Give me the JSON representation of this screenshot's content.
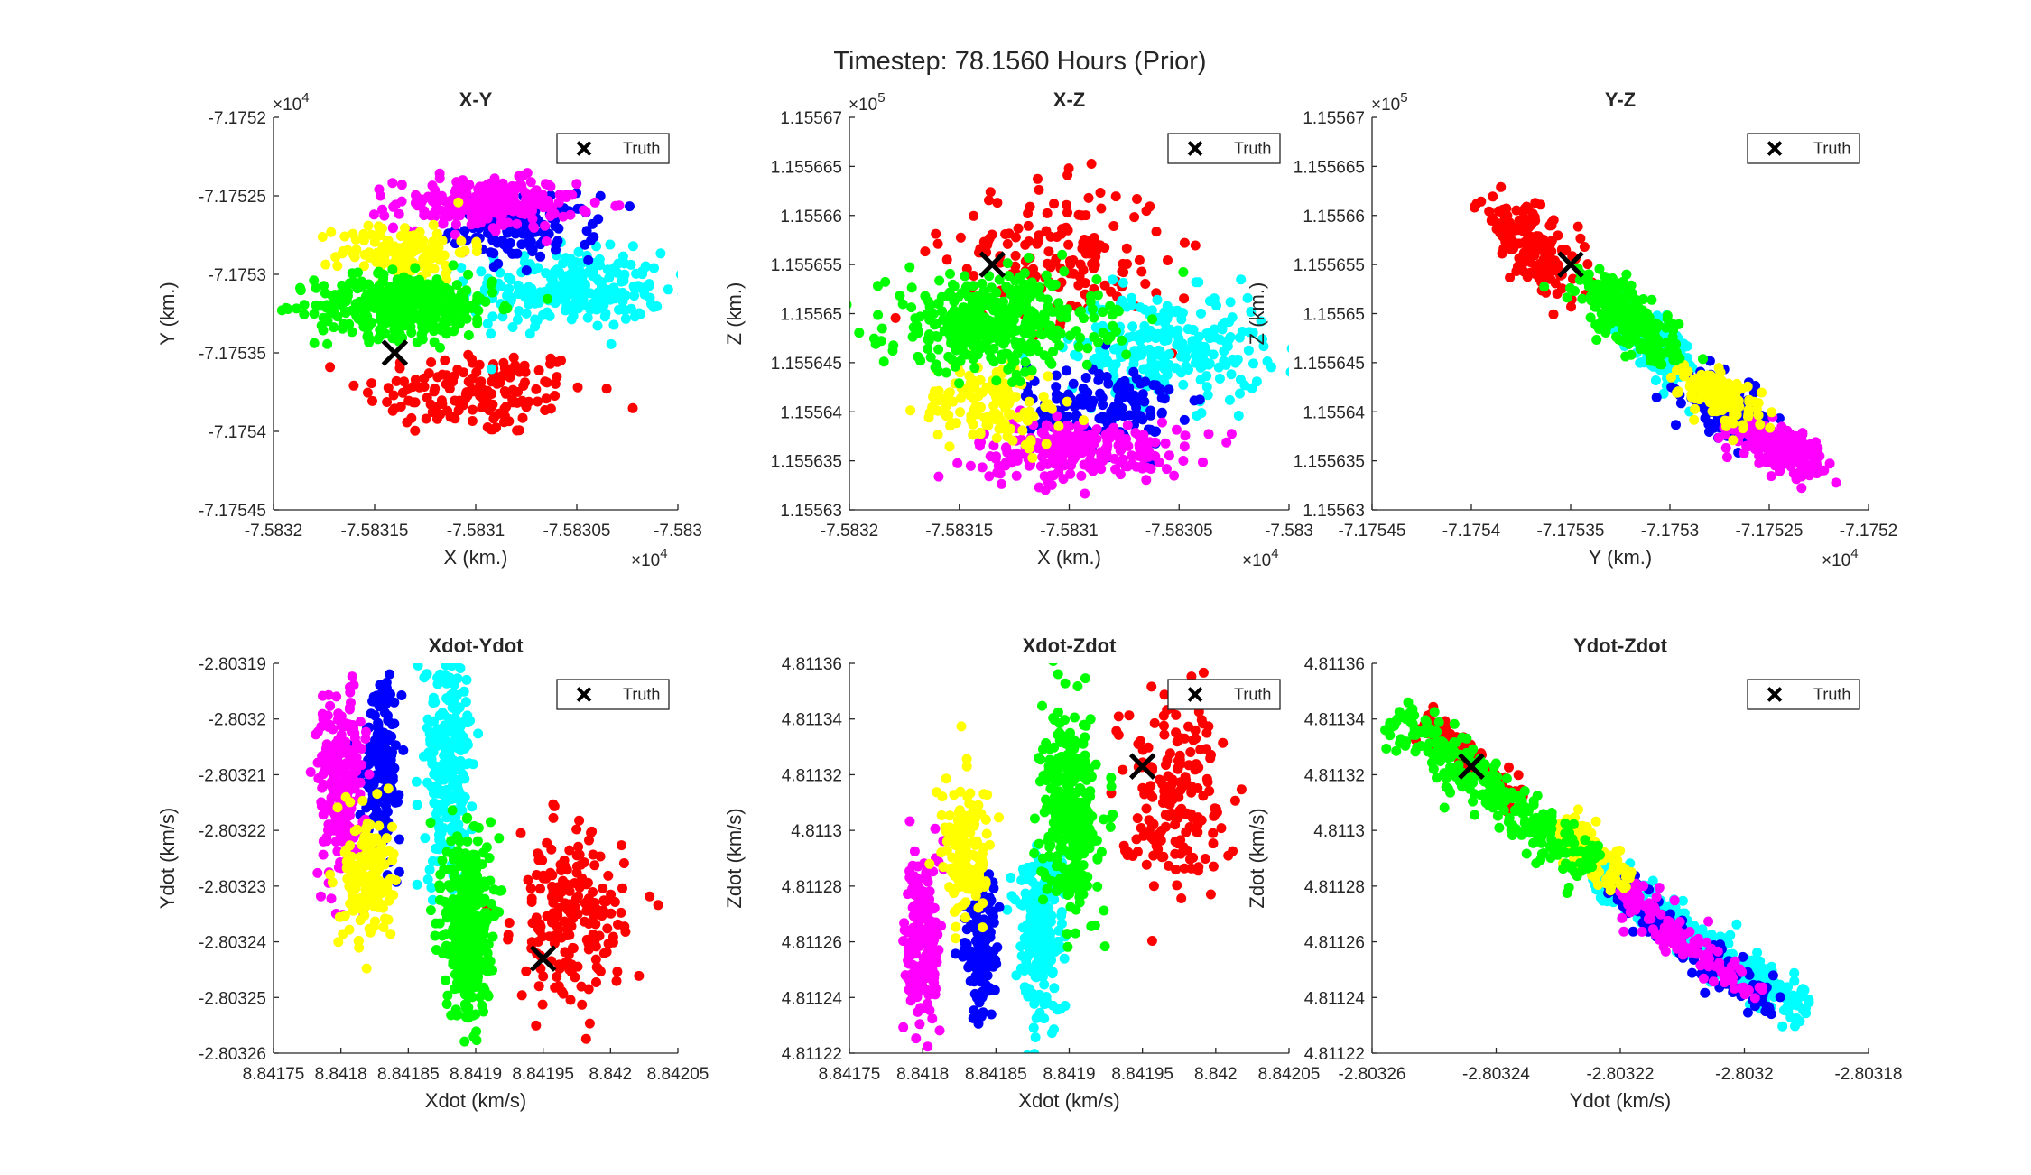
{
  "figure": {
    "title": "Timestep: 78.1560 Hours (Prior)"
  },
  "colors": {
    "red": "#ff0000",
    "green": "#00ff00",
    "blue": "#0000ff",
    "cyan": "#00ffff",
    "magenta": "#ff00ff",
    "yellow": "#ffff00",
    "truth": "#000000",
    "axis": "#262626"
  },
  "chart_data": [
    {
      "id": "xy",
      "type": "scatter",
      "title": "X-Y",
      "xlabel": "X (km.)",
      "ylabel": "Y (km.)",
      "xlim": [
        -75832,
        -75830
      ],
      "ylim": [
        -71754.5,
        -71752
      ],
      "xticks": [
        -75832,
        -75831.5,
        -75831,
        -75830.5,
        -75830
      ],
      "yticks": [
        -71754.5,
        -71754,
        -71753.5,
        -71753,
        -71752.5,
        -71752
      ],
      "xtick_labels": [
        "-7.5832",
        "-7.58315",
        "-7.5831",
        "-7.58305",
        "-7.583"
      ],
      "ytick_labels": [
        "-7.17545",
        "-7.1754",
        "-7.17535",
        "-7.1753",
        "-7.17525",
        "-7.1752"
      ],
      "x_exponent": "4",
      "y_exponent": "4",
      "legend": "Truth",
      "legend_position": "top-right",
      "truth": [
        -75831.4,
        -71753.5
      ],
      "clusters": [
        {
          "color": "red",
          "center": [
            -75831.0,
            -71753.75
          ],
          "spread": [
            0.28,
            0.14
          ],
          "count": 160
        },
        {
          "color": "cyan",
          "center": [
            -75830.55,
            -71753.1
          ],
          "spread": [
            0.24,
            0.12
          ],
          "count": 260
        },
        {
          "color": "blue",
          "center": [
            -75830.75,
            -71752.7
          ],
          "spread": [
            0.17,
            0.1
          ],
          "count": 140
        },
        {
          "color": "magenta",
          "center": [
            -75830.95,
            -71752.55
          ],
          "spread": [
            0.22,
            0.08
          ],
          "count": 240
        },
        {
          "color": "yellow",
          "center": [
            -75831.35,
            -71752.85
          ],
          "spread": [
            0.16,
            0.09
          ],
          "count": 130
        },
        {
          "color": "green",
          "center": [
            -75831.35,
            -71753.2
          ],
          "spread": [
            0.22,
            0.1
          ],
          "count": 420
        }
      ]
    },
    {
      "id": "xz",
      "type": "scatter",
      "title": "X-Z",
      "xlabel": "X (km.)",
      "ylabel": "Z (km.)",
      "xlim": [
        -75832,
        -75830
      ],
      "ylim": [
        115563,
        115567
      ],
      "xticks": [
        -75832,
        -75831.5,
        -75831,
        -75830.5,
        -75830
      ],
      "yticks": [
        115563,
        115563.5,
        115564,
        115564.5,
        115565,
        115565.5,
        115566,
        115566.5,
        115567
      ],
      "xtick_labels": [
        "-7.5832",
        "-7.58315",
        "-7.5831",
        "-7.58305",
        "-7.583"
      ],
      "ytick_labels": [
        "1.15563",
        "1.155635",
        "1.15564",
        "1.155645",
        "1.15565",
        "1.155655",
        "1.15566",
        "1.155665",
        "1.15567"
      ],
      "x_exponent": "4",
      "y_exponent": "5",
      "legend": "Truth",
      "legend_position": "top-right",
      "truth": [
        -75831.35,
        115565.5
      ],
      "clusters": [
        {
          "color": "red",
          "center": [
            -75831.05,
            115565.6
          ],
          "spread": [
            0.25,
            0.35
          ],
          "count": 170
        },
        {
          "color": "cyan",
          "center": [
            -75830.55,
            115564.65
          ],
          "spread": [
            0.22,
            0.28
          ],
          "count": 250
        },
        {
          "color": "blue",
          "center": [
            -75830.85,
            115564.05
          ],
          "spread": [
            0.17,
            0.22
          ],
          "count": 150
        },
        {
          "color": "yellow",
          "center": [
            -75831.35,
            115564.1
          ],
          "spread": [
            0.16,
            0.22
          ],
          "count": 140
        },
        {
          "color": "magenta",
          "center": [
            -75830.95,
            115563.6
          ],
          "spread": [
            0.24,
            0.15
          ],
          "count": 230
        },
        {
          "color": "green",
          "center": [
            -75831.35,
            115564.9
          ],
          "spread": [
            0.24,
            0.24
          ],
          "count": 420
        }
      ]
    },
    {
      "id": "yz",
      "type": "scatter",
      "title": "Y-Z",
      "xlabel": "Y (km.)",
      "ylabel": "Z (km.)",
      "xlim": [
        -71754.5,
        -71752
      ],
      "ylim": [
        115563,
        115567
      ],
      "xticks": [
        -71754.5,
        -71754,
        -71753.5,
        -71753,
        -71752.5,
        -71752
      ],
      "yticks": [
        115563,
        115563.5,
        115564,
        115564.5,
        115565,
        115565.5,
        115566,
        115566.5,
        115567
      ],
      "xtick_labels": [
        "-7.17545",
        "-7.1754",
        "-7.17535",
        "-7.1753",
        "-7.17525",
        "-7.1752"
      ],
      "ytick_labels": [
        "1.15563",
        "1.155635",
        "1.15564",
        "1.155645",
        "1.15565",
        "1.155655",
        "1.15566",
        "1.155665",
        "1.15567"
      ],
      "x_exponent": "4",
      "y_exponent": "5",
      "legend": "Truth",
      "legend_position": "top-right",
      "truth": [
        -71753.5,
        115565.5
      ],
      "clusters": [
        {
          "color": "red",
          "center": [
            -71753.7,
            115565.7
          ],
          "spread": [
            0.13,
            0.25
          ],
          "count": 160,
          "corr": -0.7
        },
        {
          "color": "green",
          "center": [
            -71753.2,
            115564.95
          ],
          "spread": [
            0.12,
            0.22
          ],
          "count": 260,
          "corr": -0.7
        },
        {
          "color": "cyan",
          "center": [
            -71753.05,
            115564.65
          ],
          "spread": [
            0.09,
            0.18
          ],
          "count": 260,
          "corr": -0.7
        },
        {
          "color": "blue",
          "center": [
            -71752.7,
            115564.0
          ],
          "spread": [
            0.11,
            0.17
          ],
          "count": 120,
          "corr": -0.5
        },
        {
          "color": "yellow",
          "center": [
            -71752.75,
            115564.15
          ],
          "spread": [
            0.1,
            0.14
          ],
          "count": 130,
          "corr": -0.5
        },
        {
          "color": "magenta",
          "center": [
            -71752.45,
            115563.65
          ],
          "spread": [
            0.11,
            0.12
          ],
          "count": 200,
          "corr": -0.5
        }
      ]
    },
    {
      "id": "xdot-ydot",
      "type": "scatter",
      "title": "Xdot-Ydot",
      "xlabel": "Xdot (km/s)",
      "ylabel": "Ydot (km/s)",
      "xlim": [
        8.84175,
        8.84205
      ],
      "ylim": [
        -2.80326,
        -2.80319
      ],
      "xticks": [
        8.84175,
        8.8418,
        8.84185,
        8.8419,
        8.84195,
        8.842,
        8.84205
      ],
      "yticks": [
        -2.80326,
        -2.80325,
        -2.80324,
        -2.80323,
        -2.80322,
        -2.80321,
        -2.8032,
        -2.80319
      ],
      "xtick_labels": [
        "8.84175",
        "8.8418",
        "8.84185",
        "8.8419",
        "8.84195",
        "8.842",
        "8.84205"
      ],
      "ytick_labels": [
        "-2.80326",
        "-2.80325",
        "-2.80324",
        "-2.80323",
        "-2.80322",
        "-2.80321",
        "-2.8032",
        "-2.80319"
      ],
      "legend": "Truth",
      "legend_position": "top-right",
      "truth": [
        8.84195,
        -2.803243
      ],
      "clusters": [
        {
          "color": "red",
          "center": [
            8.84197,
            -2.803236
          ],
          "spread": [
            2e-05,
            7.5e-06
          ],
          "count": 200
        },
        {
          "color": "magenta",
          "center": [
            8.8418,
            -2.803212
          ],
          "spread": [
            8.5e-06,
            8.5e-06
          ],
          "count": 230
        },
        {
          "color": "blue",
          "center": [
            8.84183,
            -2.803207
          ],
          "spread": [
            7e-06,
            7.5e-06
          ],
          "count": 170
        },
        {
          "color": "cyan",
          "center": [
            8.84188,
            -2.803208
          ],
          "spread": [
            9e-06,
            1.1e-05
          ],
          "count": 250
        },
        {
          "color": "yellow",
          "center": [
            8.84182,
            -2.803228
          ],
          "spread": [
            9e-06,
            6e-06
          ],
          "count": 170
        },
        {
          "color": "green",
          "center": [
            8.841894,
            -2.803237
          ],
          "spread": [
            8.5e-06,
            8.5e-06
          ],
          "count": 380
        }
      ]
    },
    {
      "id": "xdot-zdot",
      "type": "scatter",
      "title": "Xdot-Zdot",
      "xlabel": "Xdot (km/s)",
      "ylabel": "Zdot (km/s)",
      "xlim": [
        8.84175,
        8.84205
      ],
      "ylim": [
        4.81122,
        4.81136
      ],
      "xticks": [
        8.84175,
        8.8418,
        8.84185,
        8.8419,
        8.84195,
        8.842,
        8.84205
      ],
      "yticks": [
        4.81122,
        4.81124,
        4.81126,
        4.81128,
        4.8113,
        4.81132,
        4.81134,
        4.81136
      ],
      "xtick_labels": [
        "8.84175",
        "8.8418",
        "8.84185",
        "8.8419",
        "8.84195",
        "8.842",
        "8.84205"
      ],
      "ytick_labels": [
        "4.81122",
        "4.81124",
        "4.81126",
        "4.81128",
        "4.8113",
        "4.81132",
        "4.81134",
        "4.81136"
      ],
      "legend": "Truth",
      "legend_position": "top-right",
      "truth": [
        8.84195,
        4.811323
      ],
      "clusters": [
        {
          "color": "red",
          "center": [
            8.84197,
            4.811315
          ],
          "spread": [
            1.8e-05,
            1.8e-05
          ],
          "count": 180
        },
        {
          "color": "yellow",
          "center": [
            8.84183,
            4.811292
          ],
          "spread": [
            8.5e-06,
            1.2e-05
          ],
          "count": 160
        },
        {
          "color": "magenta",
          "center": [
            8.8418,
            4.81126
          ],
          "spread": [
            6e-06,
            1.7e-05
          ],
          "count": 200
        },
        {
          "color": "blue",
          "center": [
            8.84184,
            4.811258
          ],
          "spread": [
            6e-06,
            1.3e-05
          ],
          "count": 150
        },
        {
          "color": "cyan",
          "center": [
            8.84188,
            4.811264
          ],
          "spread": [
            8e-06,
            1.6e-05
          ],
          "count": 250
        },
        {
          "color": "green",
          "center": [
            8.8419,
            4.811307
          ],
          "spread": [
            9e-06,
            1.7e-05
          ],
          "count": 380
        }
      ]
    },
    {
      "id": "ydot-zdot",
      "type": "scatter",
      "title": "Ydot-Zdot",
      "xlabel": "Ydot (km/s)",
      "ylabel": "Zdot (km/s)",
      "xlim": [
        -2.80326,
        -2.80318
      ],
      "ylim": [
        4.81122,
        4.81136
      ],
      "xticks": [
        -2.80326,
        -2.80324,
        -2.80322,
        -2.8032,
        -2.80318
      ],
      "yticks": [
        4.81122,
        4.81124,
        4.81126,
        4.81128,
        4.8113,
        4.81132,
        4.81134,
        4.81136
      ],
      "xtick_labels": [
        "-2.80326",
        "-2.80324",
        "-2.80322",
        "-2.8032",
        "-2.80318"
      ],
      "ytick_labels": [
        "4.81122",
        "4.81124",
        "4.81126",
        "4.81128",
        "4.8113",
        "4.81132",
        "4.81134",
        "4.81136"
      ],
      "legend": "Truth",
      "legend_position": "top-right",
      "truth": [
        -2.803244,
        4.811323
      ],
      "clusters": [
        {
          "color": "red",
          "band": [
            [
              -2.803252,
              4.81134
            ],
            [
              -2.803236,
              4.811311
            ]
          ],
          "width": 1.5e-06,
          "count": 90
        },
        {
          "color": "green",
          "band": [
            [
              -2.803256,
              4.811342
            ],
            [
              -2.803225,
              4.811285
            ]
          ],
          "width": 2e-06,
          "count": 300
        },
        {
          "color": "yellow",
          "band": [
            [
              -2.80323,
              4.811303
            ],
            [
              -2.803219,
              4.81128
            ]
          ],
          "width": 1.5e-06,
          "count": 130
        },
        {
          "color": "blue",
          "band": [
            [
              -2.803222,
              4.81128
            ],
            [
              -2.803195,
              4.811236
            ]
          ],
          "width": 1.5e-06,
          "count": 150
        },
        {
          "color": "magenta",
          "band": [
            [
              -2.80322,
              4.811278
            ],
            [
              -2.803198,
              4.81124
            ]
          ],
          "width": 1.5e-06,
          "count": 120
        },
        {
          "color": "cyan",
          "band": [
            [
              -2.803224,
              4.811286
            ],
            [
              -2.80319,
              4.811234
            ]
          ],
          "width": 1.8e-06,
          "count": 320
        }
      ]
    }
  ]
}
